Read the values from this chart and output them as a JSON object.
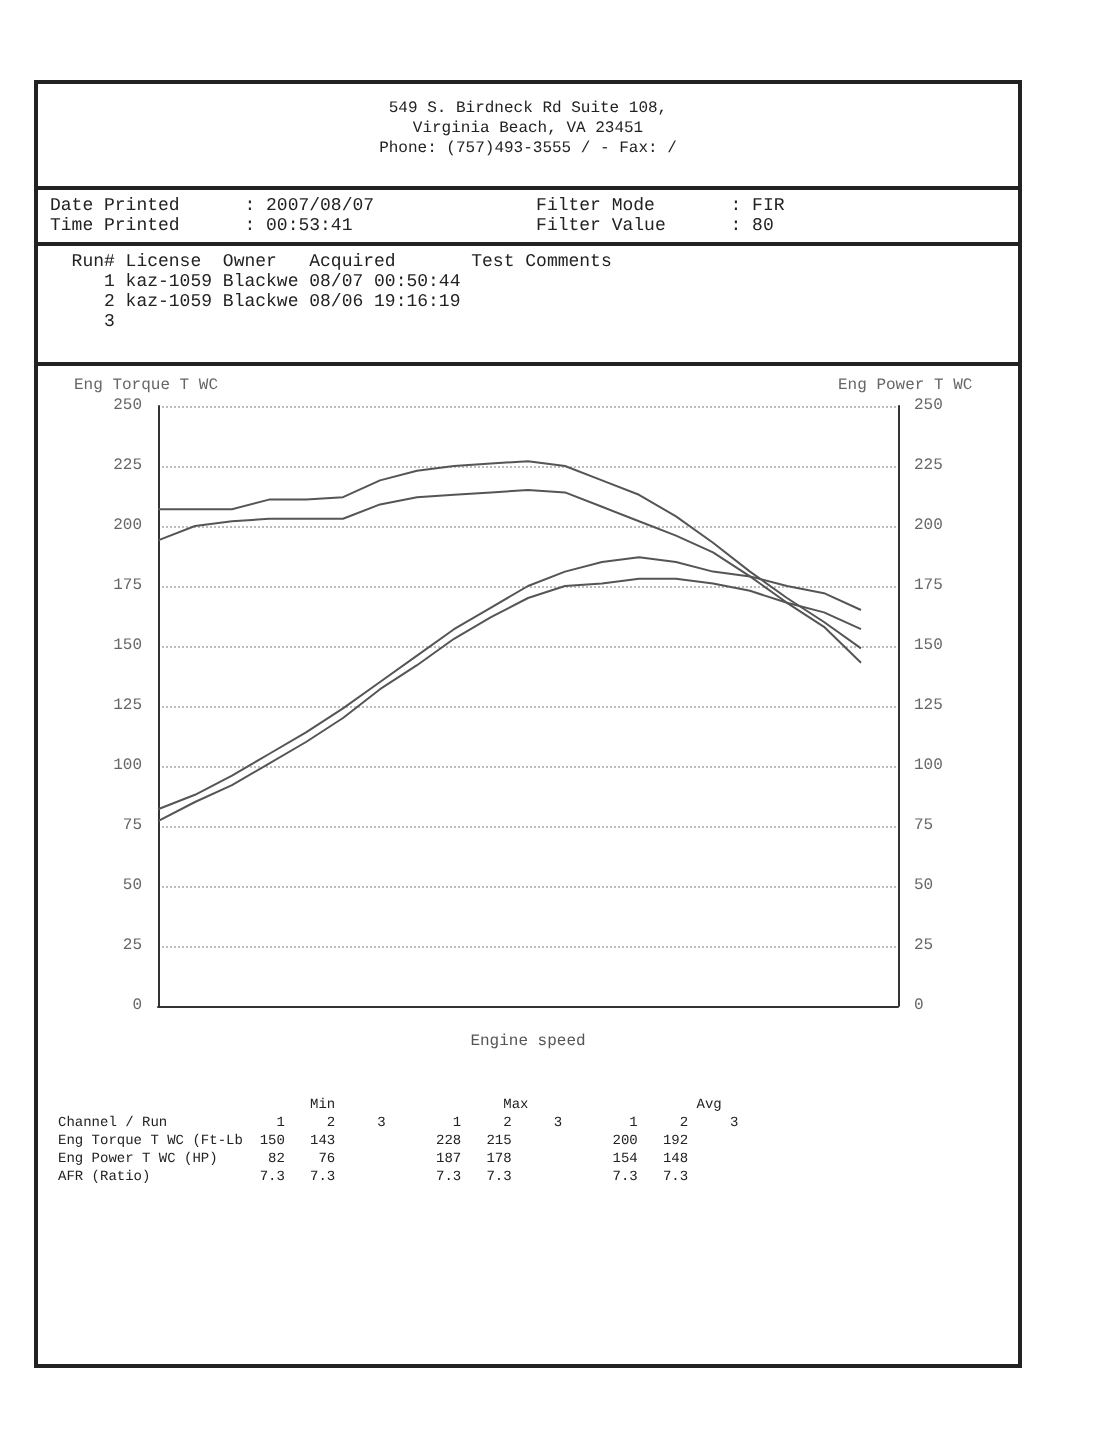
{
  "chart_data": {
    "type": "line",
    "xlabel": "Engine speed",
    "ylabel": "Eng Torque T WC",
    "y2label": "Eng Power T WC",
    "categories": [
      null,
      null,
      null,
      null,
      null,
      null,
      null,
      null,
      null,
      null,
      null,
      null,
      null,
      null,
      null,
      null,
      null,
      null,
      null,
      null,
      null
    ],
    "series": [
      {
        "color": "#555555",
        "values": [
          207,
          207,
          207,
          211,
          211,
          212,
          219,
          223,
          225,
          226,
          227,
          225,
          219,
          213,
          204,
          193,
          181,
          170,
          160,
          149,
          null
        ]
      },
      {
        "color": "#555555",
        "values": [
          194,
          200,
          202,
          203,
          203,
          203,
          209,
          212,
          213,
          214,
          215,
          214,
          208,
          202,
          196,
          189,
          179,
          168,
          158,
          143,
          null
        ]
      },
      {
        "color": "#555555",
        "values": [
          82,
          88,
          96,
          105,
          114,
          124,
          135,
          146,
          157,
          166,
          175,
          181,
          185,
          187,
          185,
          181,
          179,
          175,
          172,
          165,
          null
        ]
      },
      {
        "color": "#555555",
        "values": [
          77,
          85,
          92,
          101,
          110,
          120,
          132,
          142,
          153,
          162,
          170,
          175,
          176,
          178,
          178,
          176,
          173,
          168,
          164,
          157,
          null
        ]
      }
    ],
    "ylim": [
      0,
      250
    ],
    "yticks": [
      0,
      25,
      50,
      75,
      100,
      125,
      150,
      175,
      200,
      225,
      250
    ],
    "y2lim": [
      0,
      250
    ],
    "y2ticks": [
      0,
      25,
      50,
      75,
      100,
      125,
      150,
      175,
      200,
      225,
      250
    ],
    "grid": "y",
    "marker": "none",
    "line_style": "solid",
    "annotations": [
      "549 S. Birdneck Rd Suite 108,",
      "Virginia Beach, VA 23451",
      "Phone: (757)493-3555 / - Fax: /",
      "Date Printed      : 2007/08/07               Filter Mode       : FIR",
      "Time Printed      : 00:53:41                 Filter Value      : 80",
      "  Run# License  Owner   Acquired       Test Comments",
      "     1 kaz-1059 Blackwe 08/07 00:50:44",
      "     2 kaz-1059 Blackwe 08/06 19:16:19",
      "     3",
      "                              Min                    Max                    Avg",
      "Channel / Run             1     2     3        1     2     3        1     2     3",
      "Eng Torque T WC (Ft-Lb  150   143            228   215            200   192",
      "Eng Power T WC (HP)      82    76            187   178            154   148",
      "AFR (Ratio)             7.3   7.3            7.3   7.3            7.3   7.3"
    ]
  }
}
